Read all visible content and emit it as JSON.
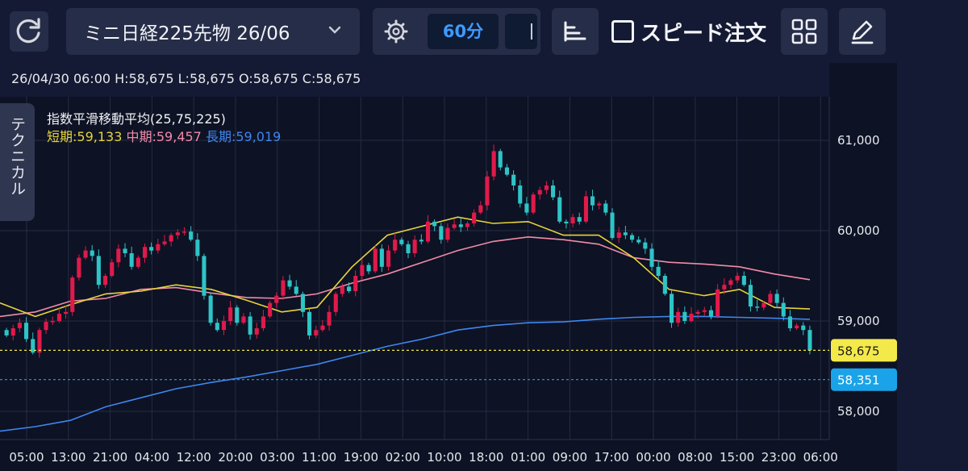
{
  "toolbar": {
    "refresh_icon": "refresh-icon",
    "symbol": "ミニ日経225先物 26/06",
    "settings_icon": "gear-icon",
    "timeframe": "60分",
    "speed_order": "スピード注文",
    "icons": [
      "sort-lines-icon",
      "grid-icon",
      "pencil-icon"
    ]
  },
  "ohlc_line": "26/04/30 06:00  H:58,675  L:58,675  O:58,675  C:58,675",
  "technical_tab": "テクニカル",
  "indicator": {
    "title": "指数平滑移動平均(25,75,225)",
    "short": "短期:59,133",
    "mid": "中期:59,457",
    "long": "長期:59,019"
  },
  "colors": {
    "up": "#e01a4a",
    "down": "#2ec4c6",
    "ema_short": "#e7d43a",
    "ema_mid": "#f28ba8",
    "ema_long": "#3f86ee",
    "current_price": "#f4e94a",
    "reference_price": "#1aa3e8"
  },
  "chart_data": {
    "type": "candlestick",
    "y_ticks": [
      "61,000",
      "60,000",
      "59,000",
      "58,000"
    ],
    "x_ticks": [
      "05:00",
      "13:00",
      "21:00",
      "04:00",
      "12:00",
      "20:00",
      "03:00",
      "11:00",
      "19:00",
      "02:00",
      "10:00",
      "18:00",
      "01:00",
      "09:00",
      "17:00",
      "00:00",
      "08:00",
      "15:00",
      "23:00",
      "06:00"
    ],
    "ylim": [
      57600,
      61450
    ],
    "current_price": {
      "value": 58675,
      "label": "58,675"
    },
    "reference_price": {
      "value": 58351,
      "label": "58,351"
    },
    "close": [
      58840,
      58920,
      58980,
      58800,
      58650,
      58900,
      58990,
      59000,
      59080,
      59100,
      59480,
      59700,
      59780,
      59720,
      59400,
      59500,
      59650,
      59800,
      59750,
      59600,
      59700,
      59820,
      59780,
      59850,
      59880,
      59950,
      59980,
      59990,
      59900,
      59720,
      59280,
      58980,
      58900,
      59000,
      59150,
      58980,
      59050,
      58850,
      58920,
      59050,
      59200,
      59280,
      59450,
      59380,
      59300,
      59100,
      58840,
      58900,
      58950,
      59100,
      59300,
      59380,
      59330,
      59500,
      59620,
      59550,
      59800,
      59600,
      59780,
      59900,
      59850,
      59750,
      59900,
      59880,
      60100,
      60050,
      59900,
      60030,
      60070,
      60040,
      60080,
      60200,
      60280,
      60600,
      60880,
      60700,
      60620,
      60500,
      60300,
      60200,
      60400,
      60450,
      60500,
      60370,
      60100,
      60080,
      60150,
      60100,
      60380,
      60280,
      60300,
      60200,
      59920,
      59980,
      59950,
      59900,
      59870,
      59800,
      59600,
      59500,
      59300,
      58980,
      59100,
      59000,
      59080,
      59100,
      59120,
      59050,
      59350,
      59400,
      59450,
      59500,
      59400,
      59160,
      59150,
      59200,
      59300,
      59200,
      59050,
      58920,
      58950,
      58900,
      58675
    ],
    "ema": {
      "short": [
        59200,
        59050,
        59180,
        59300,
        59330,
        59400,
        59350,
        59230,
        59100,
        59150,
        59600,
        59950,
        60050,
        60150,
        60080,
        60100,
        59950,
        59950,
        59700,
        59350,
        59280,
        59350,
        59150,
        59133
      ],
      "mid": [
        59050,
        59100,
        59220,
        59250,
        59350,
        59370,
        59310,
        59260,
        59250,
        59300,
        59420,
        59520,
        59650,
        59780,
        59880,
        59930,
        59900,
        59850,
        59700,
        59650,
        59630,
        59600,
        59520,
        59457
      ],
      "long": [
        57780,
        57830,
        57900,
        58050,
        58150,
        58250,
        58320,
        58380,
        58450,
        58520,
        58620,
        58720,
        58800,
        58900,
        58950,
        58980,
        58990,
        59020,
        59040,
        59050,
        59050,
        59040,
        59030,
        59019
      ]
    }
  }
}
